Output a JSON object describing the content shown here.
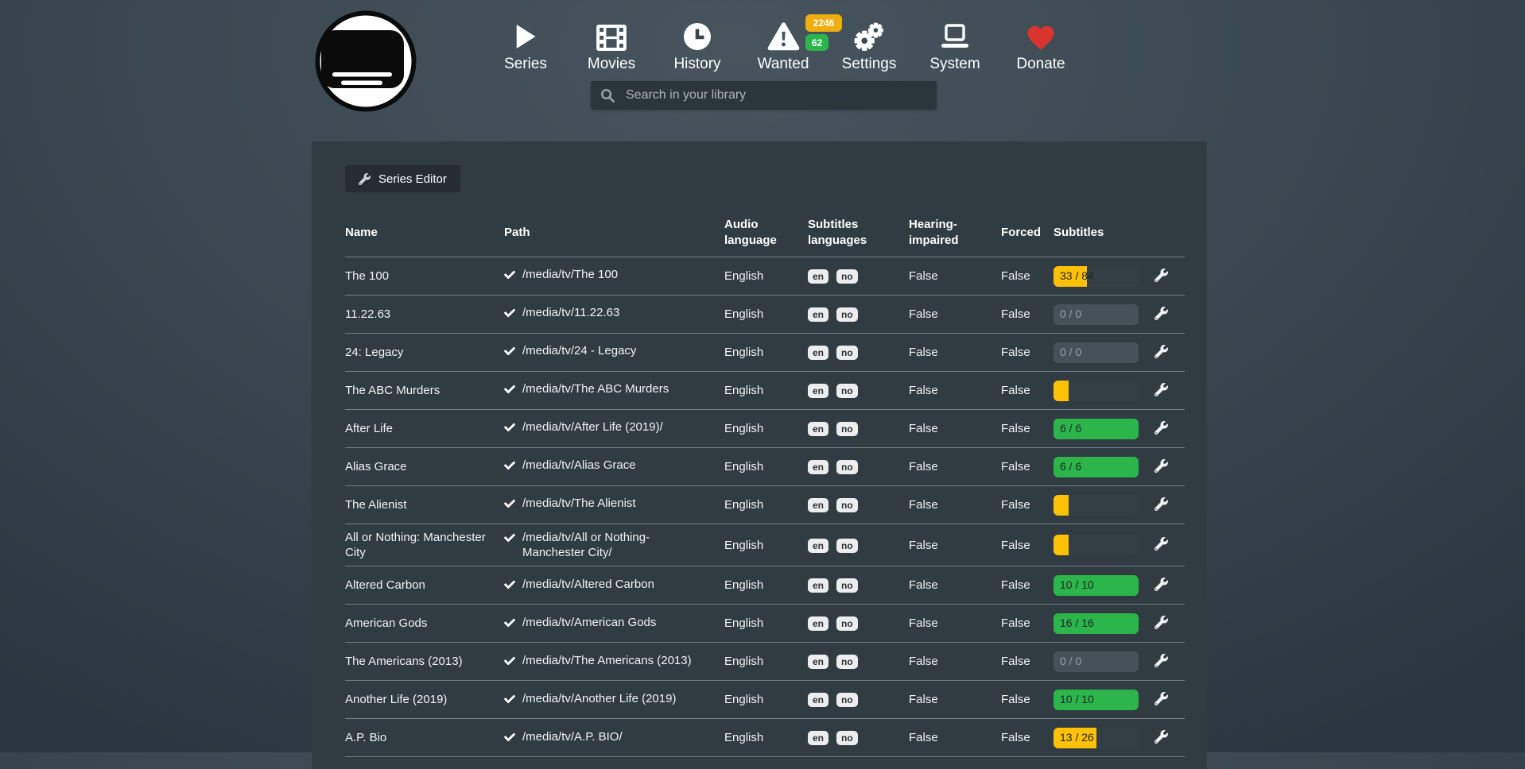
{
  "nav": {
    "items": [
      {
        "label": "Series",
        "icon": "play-icon"
      },
      {
        "label": "Movies",
        "icon": "film-icon"
      },
      {
        "label": "History",
        "icon": "clock-icon"
      },
      {
        "label": "Wanted",
        "icon": "warning-triangle-icon",
        "badges": [
          {
            "value": "2246",
            "color": "#f0ad0e"
          },
          {
            "value": "62",
            "color": "#2bb54a"
          }
        ]
      },
      {
        "label": "Settings",
        "icon": "gears-icon"
      },
      {
        "label": "System",
        "icon": "laptop-icon"
      },
      {
        "label": "Donate",
        "icon": "heart-icon",
        "icon_color": "#d9342e"
      }
    ]
  },
  "search": {
    "placeholder": "Search in your library",
    "icon": "search-icon"
  },
  "editor": {
    "button_label": "Series Editor",
    "icon": "wrench-icon"
  },
  "colors": {
    "accent_yellow": "#ffc107",
    "accent_green": "#2bb54a",
    "donate_red": "#d9342e",
    "badge_text": "#ffffff"
  },
  "table": {
    "columns": [
      "Name",
      "Path",
      "Audio language",
      "Subtitles languages",
      "Hearing-impaired",
      "Forced",
      "Subtitles"
    ],
    "rows": [
      {
        "name": "The 100",
        "path": "/media/tv/The 100",
        "audio": "English",
        "subtitle_langs": [
          "en",
          "no"
        ],
        "hearing_impaired": "False",
        "forced": "False",
        "progress": {
          "label": "33 / 84",
          "state": "partial",
          "fill": 0.39
        }
      },
      {
        "name": "11.22.63",
        "path": "/media/tv/11.22.63",
        "audio": "English",
        "subtitle_langs": [
          "en",
          "no"
        ],
        "hearing_impaired": "False",
        "forced": "False",
        "progress": {
          "label": "0 / 0",
          "state": "empty",
          "fill": 0
        }
      },
      {
        "name": "24: Legacy",
        "path": "/media/tv/24 - Legacy",
        "audio": "English",
        "subtitle_langs": [
          "en",
          "no"
        ],
        "hearing_impaired": "False",
        "forced": "False",
        "progress": {
          "label": "0 / 0",
          "state": "empty",
          "fill": 0
        }
      },
      {
        "name": "The ABC Murders",
        "path": "/media/tv/The ABC Murders",
        "audio": "English",
        "subtitle_langs": [
          "en",
          "no"
        ],
        "hearing_impaired": "False",
        "forced": "False",
        "progress": {
          "label": "",
          "state": "partial",
          "fill": 0.18
        }
      },
      {
        "name": "After Life",
        "path": "/media/tv/After Life (2019)/",
        "audio": "English",
        "subtitle_langs": [
          "en",
          "no"
        ],
        "hearing_impaired": "False",
        "forced": "False",
        "progress": {
          "label": "6 / 6",
          "state": "complete",
          "fill": 1
        }
      },
      {
        "name": "Alias Grace",
        "path": "/media/tv/Alias Grace",
        "audio": "English",
        "subtitle_langs": [
          "en",
          "no"
        ],
        "hearing_impaired": "False",
        "forced": "False",
        "progress": {
          "label": "6 / 6",
          "state": "complete",
          "fill": 1
        }
      },
      {
        "name": "The Alienist",
        "path": "/media/tv/The Alienist",
        "audio": "English",
        "subtitle_langs": [
          "en",
          "no"
        ],
        "hearing_impaired": "False",
        "forced": "False",
        "progress": {
          "label": "",
          "state": "partial",
          "fill": 0.18
        }
      },
      {
        "name": "All or Nothing: Manchester City",
        "path": "/media/tv/All or Nothing- Manchester City/",
        "audio": "English",
        "subtitle_langs": [
          "en",
          "no"
        ],
        "hearing_impaired": "False",
        "forced": "False",
        "progress": {
          "label": "",
          "state": "partial",
          "fill": 0.18
        }
      },
      {
        "name": "Altered Carbon",
        "path": "/media/tv/Altered Carbon",
        "audio": "English",
        "subtitle_langs": [
          "en",
          "no"
        ],
        "hearing_impaired": "False",
        "forced": "False",
        "progress": {
          "label": "10 / 10",
          "state": "complete",
          "fill": 1
        }
      },
      {
        "name": "American Gods",
        "path": "/media/tv/American Gods",
        "audio": "English",
        "subtitle_langs": [
          "en",
          "no"
        ],
        "hearing_impaired": "False",
        "forced": "False",
        "progress": {
          "label": "16 / 16",
          "state": "complete",
          "fill": 1
        }
      },
      {
        "name": "The Americans (2013)",
        "path": "/media/tv/The Americans (2013)",
        "audio": "English",
        "subtitle_langs": [
          "en",
          "no"
        ],
        "hearing_impaired": "False",
        "forced": "False",
        "progress": {
          "label": "0 / 0",
          "state": "empty",
          "fill": 0
        }
      },
      {
        "name": "Another Life (2019)",
        "path": "/media/tv/Another Life (2019)",
        "audio": "English",
        "subtitle_langs": [
          "en",
          "no"
        ],
        "hearing_impaired": "False",
        "forced": "False",
        "progress": {
          "label": "10 / 10",
          "state": "complete",
          "fill": 1
        }
      },
      {
        "name": "A.P. Bio",
        "path": "/media/tv/A.P. BIO/",
        "audio": "English",
        "subtitle_langs": [
          "en",
          "no"
        ],
        "hearing_impaired": "False",
        "forced": "False",
        "progress": {
          "label": "13 / 26",
          "state": "partial",
          "fill": 0.5
        }
      }
    ]
  }
}
